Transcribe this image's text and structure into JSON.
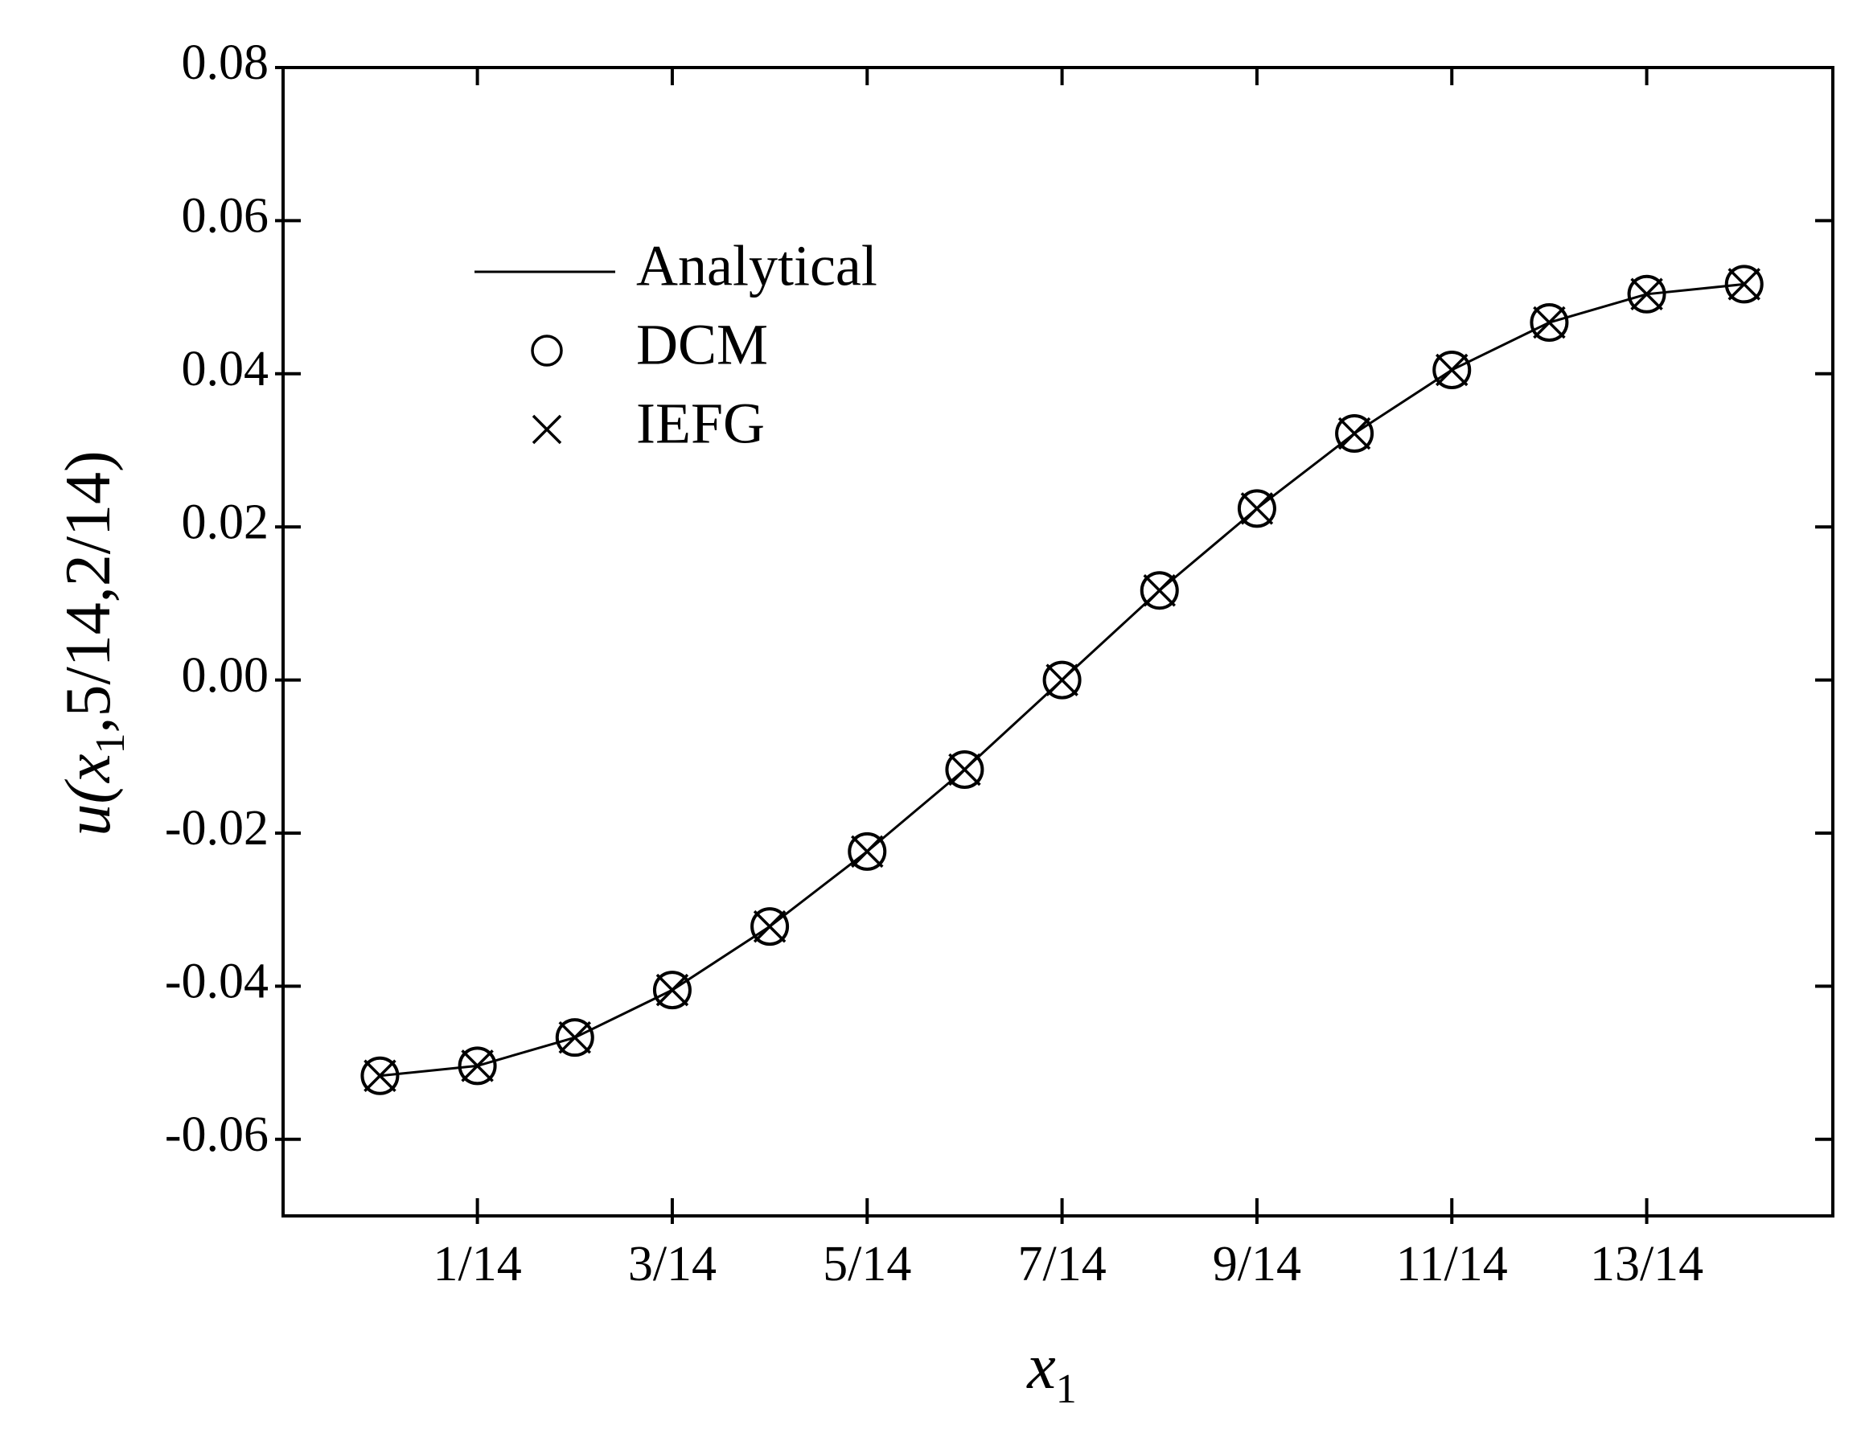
{
  "chart_data": {
    "type": "line",
    "x_label": {
      "text": "x",
      "subscript": "1"
    },
    "y_label": {
      "text": "u(",
      "italic_var": "x",
      "subscript": "1",
      "rest": ",5/14,2/14)"
    },
    "x": [
      0,
      0.0714286,
      0.142857,
      0.214286,
      0.285714,
      0.357143,
      0.428571,
      0.5,
      0.571429,
      0.642857,
      0.714286,
      0.785714,
      0.857143,
      0.928571,
      1
    ],
    "series": [
      {
        "name": "Analytical",
        "color": "#000000",
        "style": "line",
        "values": [
          -0.0517,
          -0.0504,
          -0.0467,
          -0.0405,
          -0.0322,
          -0.0224,
          -0.0117,
          0,
          0.0117,
          0.0224,
          0.0322,
          0.0405,
          0.0467,
          0.0504,
          0.0517
        ]
      },
      {
        "name": "DCM",
        "color": "#000000",
        "style": "circle",
        "values": [
          -0.0517,
          -0.0504,
          -0.0467,
          -0.0405,
          -0.0322,
          -0.0224,
          -0.0117,
          0,
          0.0117,
          0.0224,
          0.0322,
          0.0405,
          0.0467,
          0.0504,
          0.0517
        ]
      },
      {
        "name": "IEFG",
        "color": "#000000",
        "style": "cross",
        "values": [
          -0.0517,
          -0.0504,
          -0.0467,
          -0.0405,
          -0.0322,
          -0.0224,
          -0.0117,
          0,
          0.0117,
          0.0224,
          0.0322,
          0.0405,
          0.0467,
          0.0504,
          0.0517
        ]
      }
    ],
    "xlim": [
      -0.071,
      1.065
    ],
    "ylim": [
      -0.07,
      0.08
    ],
    "xticks": [
      {
        "value": 0.0714286,
        "label": "1/14"
      },
      {
        "value": 0.214286,
        "label": "3/14"
      },
      {
        "value": 0.357143,
        "label": "5/14"
      },
      {
        "value": 0.5,
        "label": "7/14"
      },
      {
        "value": 0.642857,
        "label": "9/14"
      },
      {
        "value": 0.785714,
        "label": "11/14"
      },
      {
        "value": 0.928571,
        "label": "13/14"
      }
    ],
    "yticks": [
      -0.06,
      -0.04,
      -0.02,
      {
        "value": 0,
        "label": "0.00"
      },
      0.02,
      0.04,
      0.06,
      0.08
    ],
    "legend": "upper-left"
  }
}
